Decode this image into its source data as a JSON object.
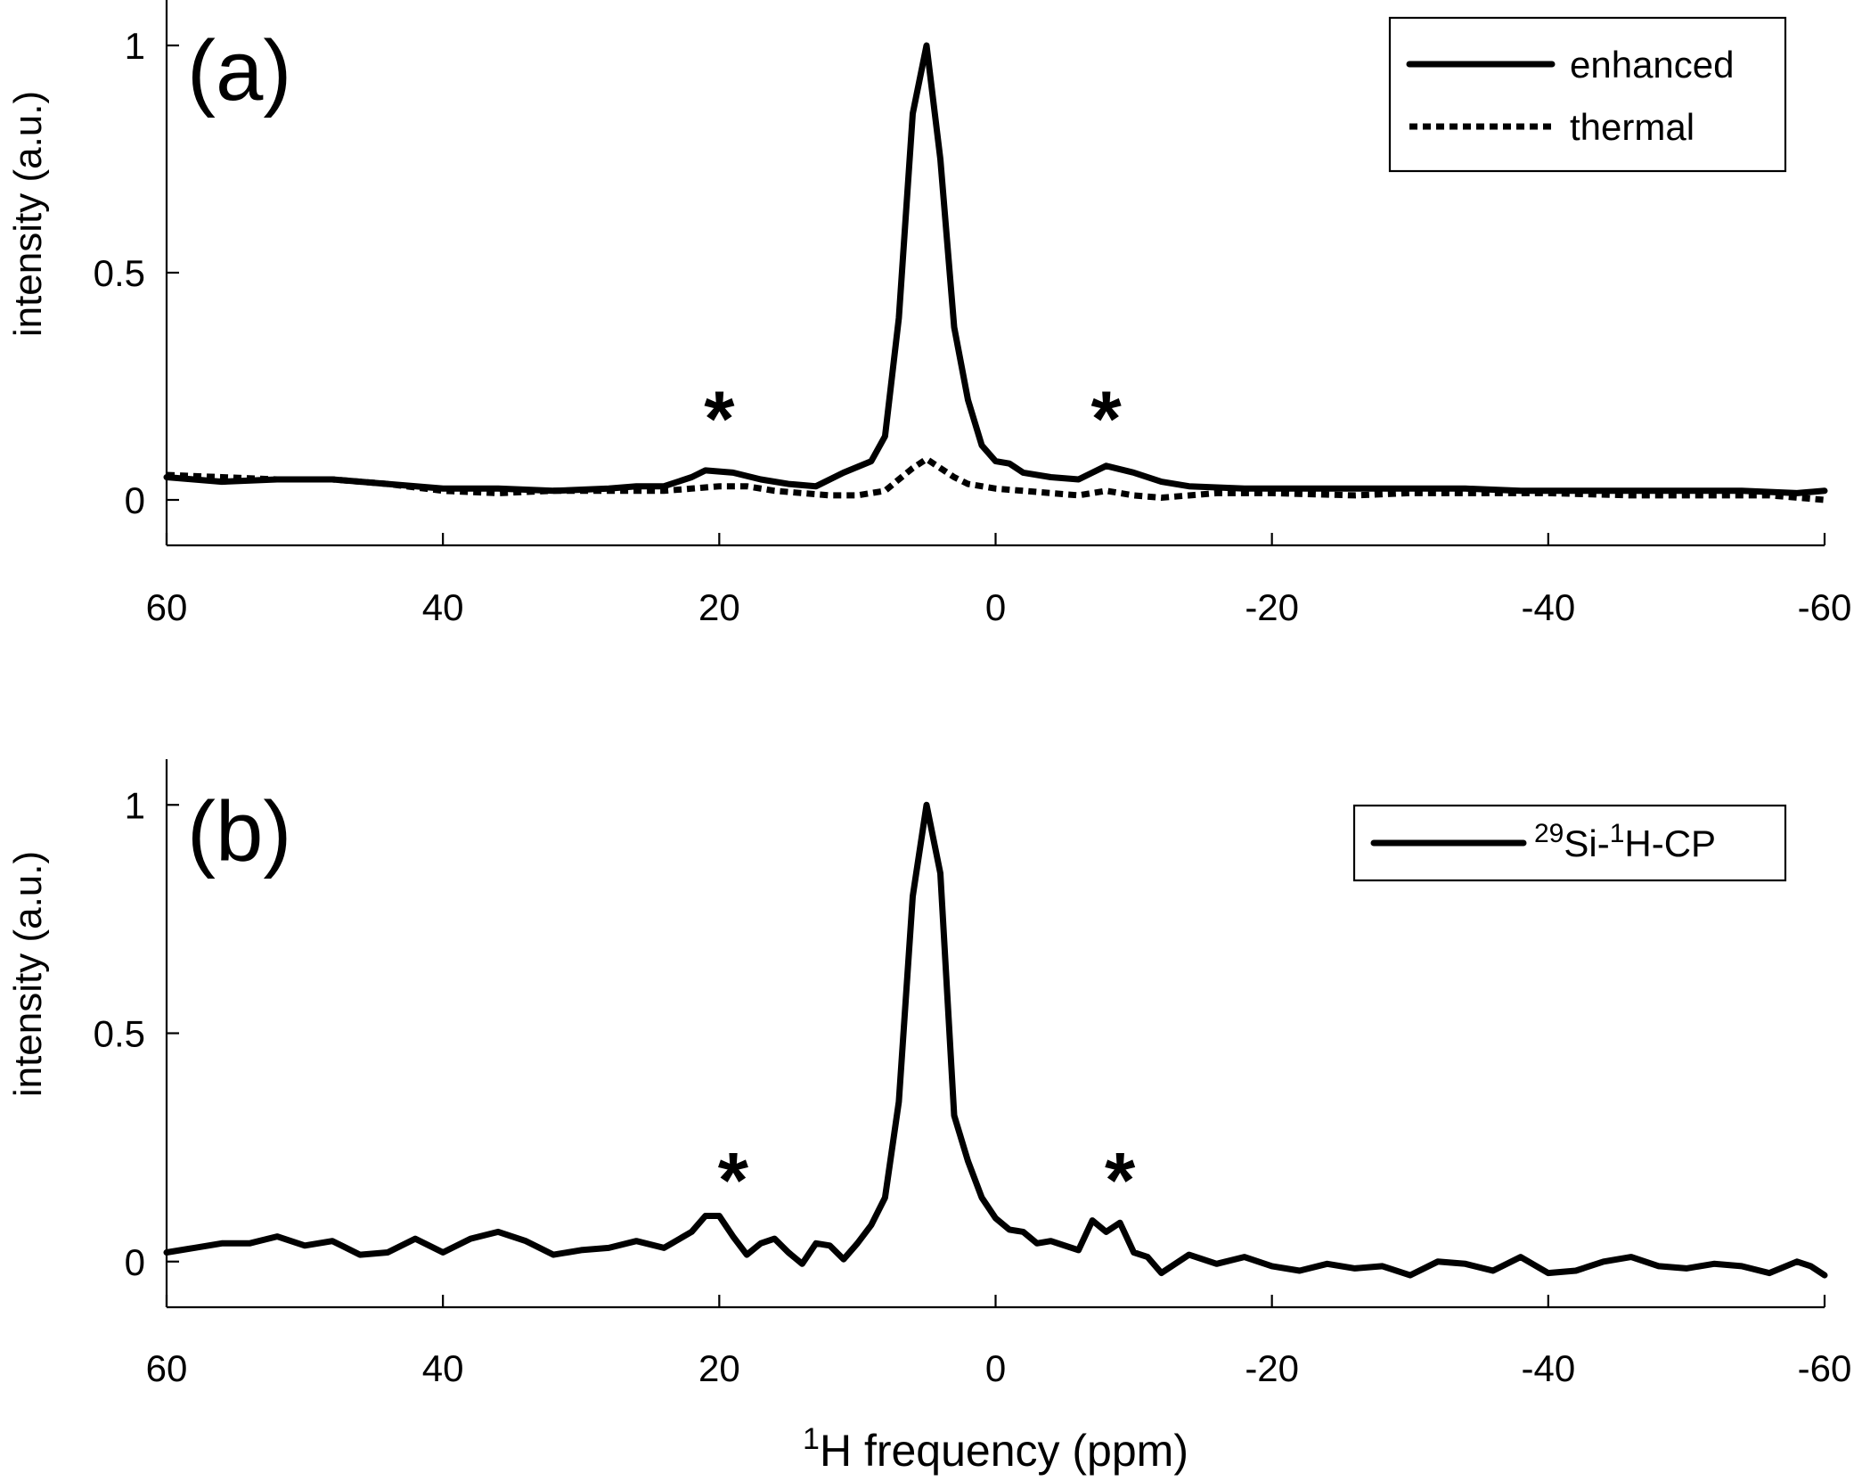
{
  "chart_data": [
    {
      "type": "line",
      "panel_label": "(a)",
      "title": "",
      "xlabel": "",
      "ylabel": "intensity (a.u.)",
      "xlim": [
        60,
        -60
      ],
      "ylim": [
        -0.1,
        1.1
      ],
      "x_ticks": [
        60,
        40,
        20,
        0,
        -20,
        -40,
        -60
      ],
      "x_tick_labels": [
        "60",
        "40",
        "20",
        "0",
        "-20",
        "-40",
        "-60"
      ],
      "y_ticks": [
        0,
        0.5,
        1
      ],
      "y_tick_labels": [
        "0",
        "0.5",
        "1"
      ],
      "legend_position": "top-right",
      "series": [
        {
          "name": "enhanced",
          "style": "solid",
          "x": [
            60,
            56,
            52,
            48,
            44,
            40,
            36,
            32,
            28,
            26,
            24,
            22,
            21,
            19,
            17,
            15,
            13,
            11,
            9,
            8,
            7,
            6,
            5,
            4,
            3,
            2,
            1,
            0,
            -1,
            -2,
            -4,
            -6,
            -7,
            -8,
            -10,
            -12,
            -14,
            -18,
            -22,
            -26,
            -30,
            -34,
            -38,
            -42,
            -46,
            -50,
            -54,
            -58,
            -60
          ],
          "y": [
            0.05,
            0.04,
            0.045,
            0.045,
            0.035,
            0.025,
            0.025,
            0.02,
            0.025,
            0.03,
            0.03,
            0.05,
            0.065,
            0.06,
            0.045,
            0.035,
            0.03,
            0.06,
            0.085,
            0.14,
            0.4,
            0.85,
            1.0,
            0.75,
            0.38,
            0.22,
            0.12,
            0.085,
            0.08,
            0.06,
            0.05,
            0.045,
            0.06,
            0.075,
            0.06,
            0.04,
            0.03,
            0.025,
            0.025,
            0.025,
            0.025,
            0.025,
            0.02,
            0.02,
            0.02,
            0.02,
            0.02,
            0.015,
            0.02
          ]
        },
        {
          "name": "thermal",
          "style": "dotted",
          "x": [
            60,
            56,
            52,
            48,
            44,
            40,
            36,
            32,
            28,
            24,
            22,
            20,
            18,
            16,
            14,
            12,
            10,
            8,
            7,
            6,
            5,
            4,
            3,
            2,
            0,
            -2,
            -4,
            -6,
            -8,
            -10,
            -12,
            -16,
            -20,
            -26,
            -30,
            -34,
            -40,
            -46,
            -50,
            -56,
            -60
          ],
          "y": [
            0.055,
            0.05,
            0.045,
            0.045,
            0.035,
            0.02,
            0.015,
            0.02,
            0.02,
            0.02,
            0.025,
            0.03,
            0.03,
            0.02,
            0.015,
            0.01,
            0.01,
            0.02,
            0.045,
            0.07,
            0.09,
            0.07,
            0.05,
            0.035,
            0.025,
            0.02,
            0.015,
            0.01,
            0.02,
            0.01,
            0.005,
            0.015,
            0.015,
            0.01,
            0.015,
            0.015,
            0.015,
            0.01,
            0.01,
            0.01,
            0.0
          ]
        }
      ],
      "annotations": [
        {
          "text": "*",
          "x": 20,
          "y": 0.19
        },
        {
          "text": "*",
          "x": -8,
          "y": 0.19
        }
      ]
    },
    {
      "type": "line",
      "panel_label": "(b)",
      "title": "",
      "xlabel_prefix": "1",
      "xlabel_main": "H frequency (ppm)",
      "ylabel": "intensity (a.u.)",
      "xlim": [
        60,
        -60
      ],
      "ylim": [
        -0.1,
        1.1
      ],
      "x_ticks": [
        60,
        40,
        20,
        0,
        -20,
        -40,
        -60
      ],
      "x_tick_labels": [
        "60",
        "40",
        "20",
        "0",
        "-20",
        "-40",
        "-60"
      ],
      "y_ticks": [
        0,
        0.5,
        1
      ],
      "y_tick_labels": [
        "0",
        "0.5",
        "1"
      ],
      "legend_position": "top-right",
      "legend_label": {
        "sup1": "29",
        "part1": "Si-",
        "sup2": "1",
        "part2": "H-CP"
      },
      "series": [
        {
          "name": "29Si-1H-CP",
          "style": "solid",
          "x": [
            60,
            58,
            56,
            54,
            52,
            50,
            48,
            46,
            44,
            42,
            40,
            38,
            36,
            34,
            32,
            30,
            28,
            26,
            24,
            22,
            21,
            20,
            19,
            18,
            17,
            16,
            15,
            14,
            13,
            12,
            11,
            10,
            9,
            8,
            7,
            6,
            5,
            4,
            3,
            2,
            1,
            0,
            -1,
            -2,
            -3,
            -4,
            -6,
            -7,
            -8,
            -9,
            -10,
            -11,
            -12,
            -14,
            -16,
            -18,
            -20,
            -22,
            -24,
            -26,
            -28,
            -30,
            -32,
            -34,
            -36,
            -38,
            -40,
            -42,
            -44,
            -46,
            -48,
            -50,
            -52,
            -54,
            -56,
            -58,
            -59,
            -60
          ],
          "y": [
            0.02,
            0.03,
            0.04,
            0.04,
            0.055,
            0.035,
            0.045,
            0.015,
            0.02,
            0.05,
            0.02,
            0.05,
            0.065,
            0.045,
            0.015,
            0.025,
            0.03,
            0.045,
            0.03,
            0.065,
            0.1,
            0.1,
            0.055,
            0.015,
            0.04,
            0.05,
            0.02,
            -0.005,
            0.04,
            0.035,
            0.005,
            0.04,
            0.08,
            0.14,
            0.35,
            0.8,
            1.0,
            0.85,
            0.32,
            0.22,
            0.14,
            0.095,
            0.07,
            0.065,
            0.04,
            0.045,
            0.025,
            0.09,
            0.065,
            0.085,
            0.02,
            0.01,
            -0.025,
            0.015,
            -0.005,
            0.01,
            -0.01,
            -0.02,
            -0.005,
            -0.015,
            -0.01,
            -0.03,
            0.0,
            -0.005,
            -0.02,
            0.01,
            -0.025,
            -0.02,
            0.0,
            0.01,
            -0.01,
            -0.015,
            -0.005,
            -0.01,
            -0.025,
            0.0,
            -0.01,
            -0.03
          ]
        }
      ],
      "annotations": [
        {
          "text": "*",
          "x": 19,
          "y": 0.19
        },
        {
          "text": "*",
          "x": -9,
          "y": 0.19
        }
      ]
    }
  ]
}
